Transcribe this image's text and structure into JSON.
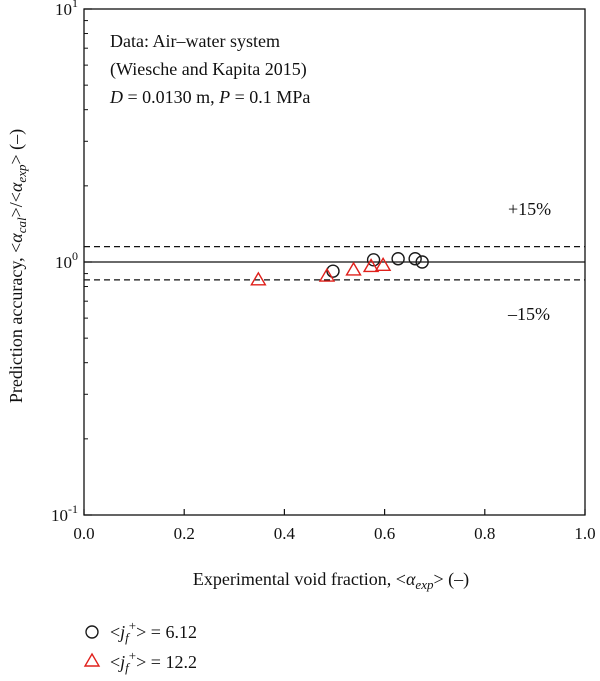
{
  "chart_data": {
    "type": "scatter",
    "xlabel": "Experimental void fraction, <αexp> (–)",
    "ylabel": "Prediction accuracy, <αcal>/<αexp> (–)",
    "xlim": [
      0.0,
      1.0
    ],
    "ylim": [
      0.1,
      10
    ],
    "yscale": "log",
    "x_ticks": [
      "0.0",
      "0.2",
      "0.4",
      "0.6",
      "0.8",
      "1.0"
    ],
    "y_ticks": [
      {
        "base": "10",
        "exp": "-1"
      },
      {
        "base": "10",
        "exp": "0"
      },
      {
        "base": "10",
        "exp": "1"
      }
    ],
    "grid": false,
    "annotation_lines": [
      "Data: Air–water system",
      "(Wiesche and Kapita 2015)",
      "D = 0.0130 m, P = 0.1 MPa"
    ],
    "reference_lines": [
      {
        "y": 1.0,
        "style": "solid"
      },
      {
        "y": 1.15,
        "style": "dashed",
        "label": "+15%"
      },
      {
        "y": 0.85,
        "style": "dashed",
        "label": "–15%"
      }
    ],
    "series": [
      {
        "name": "<jf+> = 6.12",
        "label_parts": {
          "pre": "<j",
          "sub": "f",
          "sup": "+",
          "post": "> = 6.12"
        },
        "marker": "circle",
        "color": "#1a1a1a",
        "points": [
          {
            "x": 0.497,
            "y": 0.92
          },
          {
            "x": 0.578,
            "y": 1.02
          },
          {
            "x": 0.627,
            "y": 1.03
          },
          {
            "x": 0.661,
            "y": 1.03
          },
          {
            "x": 0.675,
            "y": 1.0
          }
        ]
      },
      {
        "name": "<jf+> = 12.2",
        "label_parts": {
          "pre": "<j",
          "sub": "f",
          "sup": "+",
          "post": "> = 12.2"
        },
        "marker": "triangle",
        "color": "#e0201b",
        "points": [
          {
            "x": 0.348,
            "y": 0.85
          },
          {
            "x": 0.485,
            "y": 0.88
          },
          {
            "x": 0.538,
            "y": 0.93
          },
          {
            "x": 0.573,
            "y": 0.96
          },
          {
            "x": 0.597,
            "y": 0.97
          }
        ]
      }
    ]
  }
}
